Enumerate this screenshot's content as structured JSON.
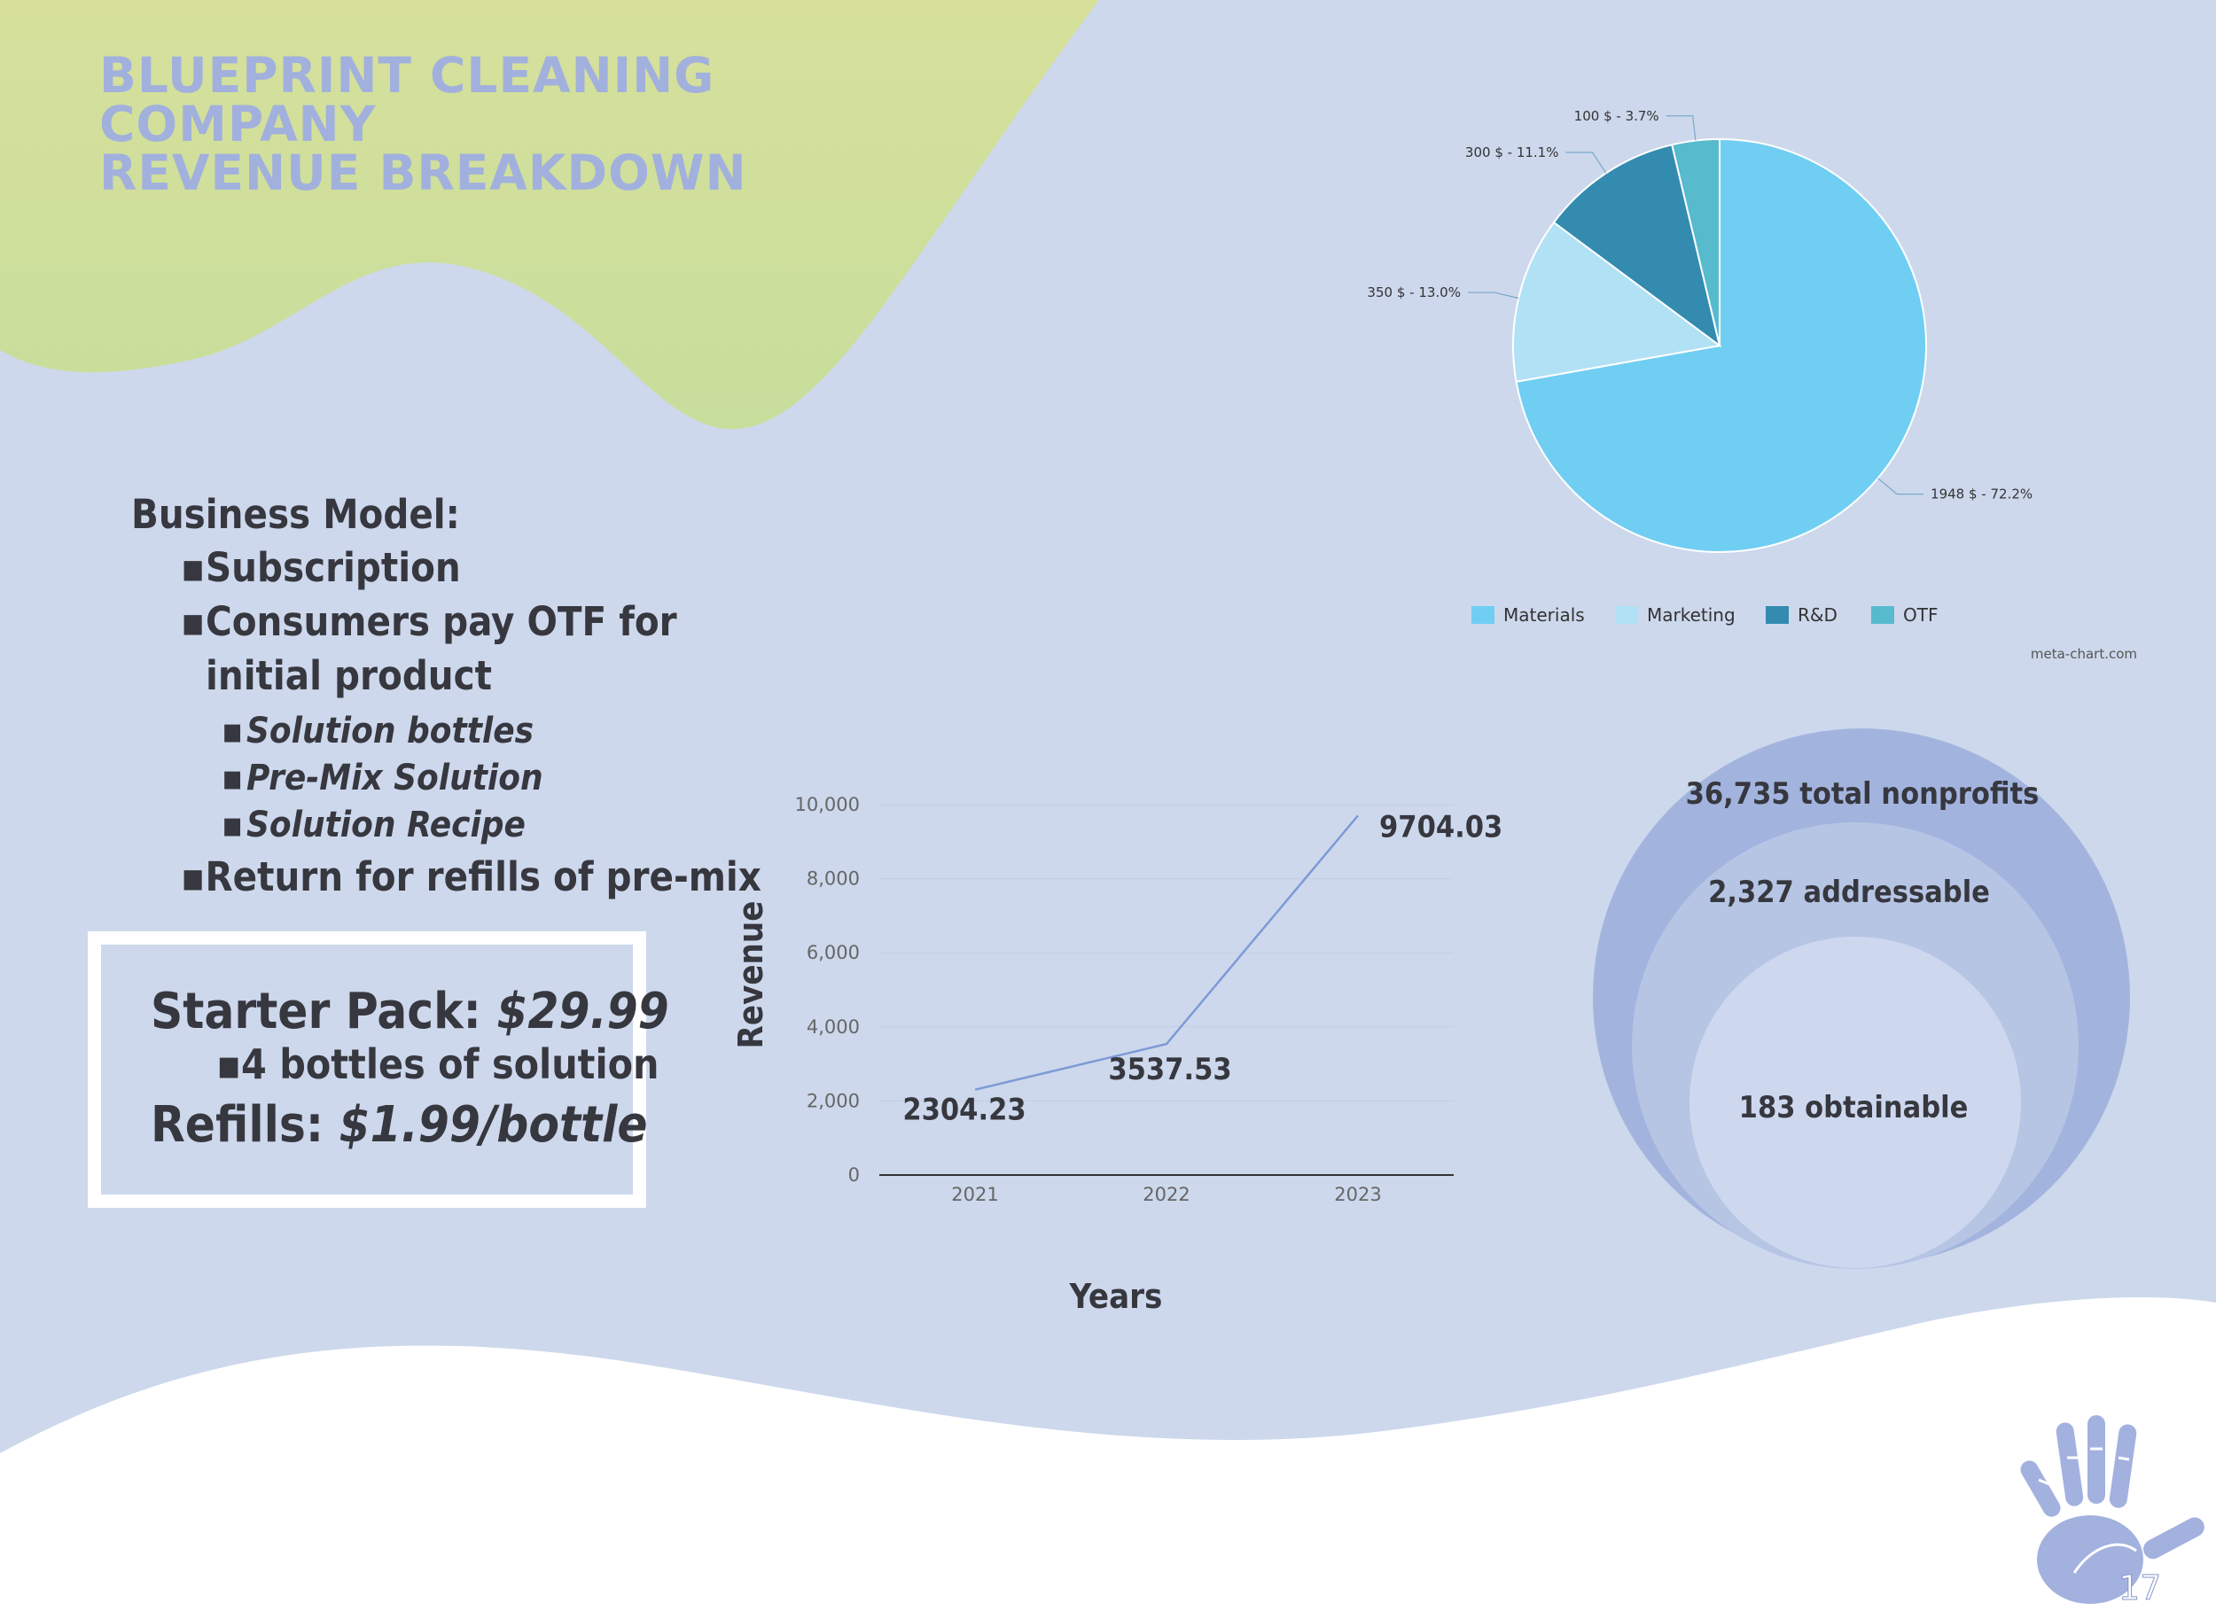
{
  "title_lines": [
    "BLUEPRINT CLEANING COMPANY",
    "REVENUE BREAKDOWN"
  ],
  "business_model": {
    "heading": "Business Model:",
    "items": [
      {
        "text": "Subscription"
      },
      {
        "text": "Consumers pay OTF for",
        "continuation": "initial product"
      },
      {
        "text": "Solution bottles"
      },
      {
        "text": "Pre-Mix Solution"
      },
      {
        "text": "Solution Recipe"
      },
      {
        "text": "Return for refills of pre-mix"
      }
    ]
  },
  "pricing": {
    "starter_label": "Starter Pack: ",
    "starter_price": "$29.99",
    "starter_detail": "4 bottles of solution",
    "refill_label": "Refills: ",
    "refill_price": "$1.99/bottle"
  },
  "market_sizing": {
    "total": "36,735 total nonprofits",
    "addressable": "2,327 addressable",
    "obtainable": "183 obtainable"
  },
  "page_number": "17",
  "chart_data": [
    {
      "type": "line",
      "x": [
        "2021",
        "2022",
        "2023"
      ],
      "values": [
        2304.23,
        3537.53,
        9704.03
      ],
      "data_labels": [
        "2304.23",
        "3537.53",
        "9704.03"
      ],
      "xlabel": "Years",
      "ylabel": "Revenue",
      "ylim": [
        0,
        10000
      ],
      "yticks": [
        0,
        2000,
        4000,
        6000,
        8000,
        10000
      ],
      "ytick_labels": [
        "0",
        "2,000",
        "4,000",
        "6,000",
        "8,000",
        "10,000"
      ],
      "grid": true,
      "line_color": "#7d9ad6"
    },
    {
      "type": "pie",
      "categories": [
        "Materials",
        "Marketing",
        "R&D",
        "OTF"
      ],
      "values": [
        1948,
        350,
        300,
        100
      ],
      "labels": [
        "1948 $ - 72.2%",
        "350 $ - 13.0%",
        "300 $ - 11.1%",
        "100 $ - 3.7%"
      ],
      "colors": [
        "#70cef3",
        "#b1e1f5",
        "#338bb0",
        "#57bacd"
      ],
      "legend_position": "bottom",
      "credit": "meta-chart.com"
    }
  ],
  "colors": {
    "background": "#cdd8ec",
    "green_blob": "#cfdf9c",
    "title": "#a2b0dd",
    "circle_outer": "#a2b4de",
    "circle_middle": "#b6c5e4",
    "circle_inner": "#cdd8ef",
    "hand": "#a3b1df"
  },
  "icons": {
    "hand": "handprint-icon"
  }
}
